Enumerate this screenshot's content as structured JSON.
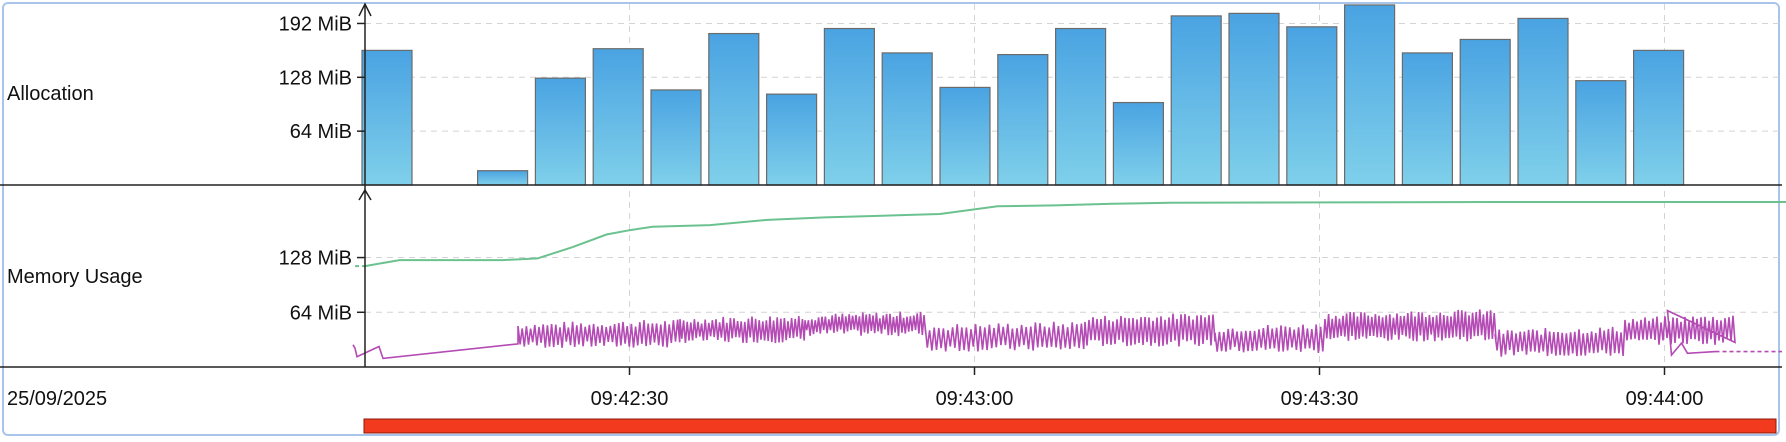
{
  "chart_data": [
    {
      "type": "bar",
      "name_label": "Allocation",
      "yticks": [
        "192 MiB",
        "128 MiB",
        "64 MiB"
      ],
      "ytick_values": [
        192,
        128,
        64
      ],
      "ylim": [
        0,
        208
      ],
      "unit": "MiB",
      "values": [
        160,
        0,
        17,
        127,
        162,
        113,
        180,
        108,
        186,
        157,
        116,
        155,
        186,
        98,
        201,
        204,
        188,
        214,
        157,
        173,
        198,
        124,
        160
      ],
      "color": "#4aa3e2"
    },
    {
      "type": "line",
      "name_label": "Memory Usage",
      "yticks": [
        "128 MiB",
        "64 MiB"
      ],
      "ytick_values": [
        128,
        64
      ],
      "ylim": [
        0,
        200
      ],
      "unit": "MiB",
      "series": [
        {
          "color": "#6cc28f",
          "x": [
            "09:42:07",
            "09:42:10",
            "09:42:12",
            "09:42:19",
            "09:42:22",
            "09:42:25",
            "09:42:28",
            "09:42:30",
            "09:42:32",
            "09:42:37",
            "09:42:42",
            "09:42:47",
            "09:42:52",
            "09:42:57",
            "09:43:02",
            "09:43:07",
            "09:43:12",
            "09:43:17",
            "09:43:45",
            "09:44:14"
          ],
          "values": [
            118,
            125,
            125,
            125,
            127,
            140,
            155,
            160,
            164,
            166,
            172,
            175,
            177,
            179,
            188,
            189,
            191,
            192,
            193,
            193
          ]
        },
        {
          "color": "#b44ab4",
          "x_range": [
            "09:42:07",
            "09:44:02"
          ],
          "min": 10,
          "max": 66,
          "tail_value": 18
        }
      ]
    }
  ],
  "x_axis": {
    "date": "25/09/2025",
    "ticks": [
      "09:42:30",
      "09:43:00",
      "09:43:30",
      "09:44:00"
    ]
  },
  "timeline_bar_color": "#f23a1f"
}
